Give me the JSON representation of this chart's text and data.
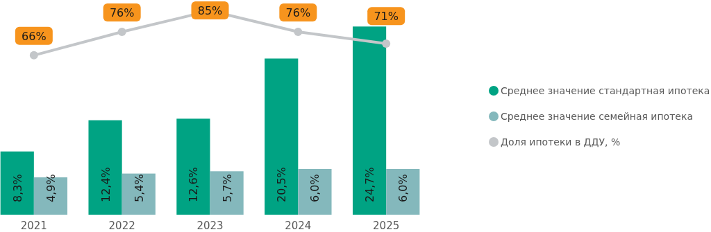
{
  "chart_data": {
    "type": "bar",
    "categories": [
      "2021",
      "2022",
      "2023",
      "2024",
      "2025"
    ],
    "series": [
      {
        "name": "Среднее значение стандартная ипотека",
        "color": "#00a383",
        "values": [
          8.3,
          12.4,
          12.6,
          20.5,
          24.7
        ],
        "value_labels": [
          "8,3%",
          "12,4%",
          "12,6%",
          "20,5%",
          "24,7%"
        ]
      },
      {
        "name": "Среднее значение семейная ипотека",
        "color": "#84b8bc",
        "values": [
          4.9,
          5.4,
          5.7,
          6.0,
          6.0
        ],
        "value_labels": [
          "4,9%",
          "5,4%",
          "5,7%",
          "6,0%",
          "6,0%"
        ]
      },
      {
        "name": "Доля ипотеки в ДДУ, %",
        "type": "line",
        "axis": "y2",
        "color": "#c3c6c9",
        "marker": "circle",
        "values": [
          66,
          76,
          85,
          76,
          71
        ],
        "value_labels": [
          "66%",
          "76%",
          "85%",
          "76%",
          "71%"
        ]
      }
    ],
    "ylim": [
      0,
      28
    ],
    "y2lim": [
      -2,
      89
    ],
    "tick_labels": "x",
    "legend": "right",
    "grid": false
  }
}
